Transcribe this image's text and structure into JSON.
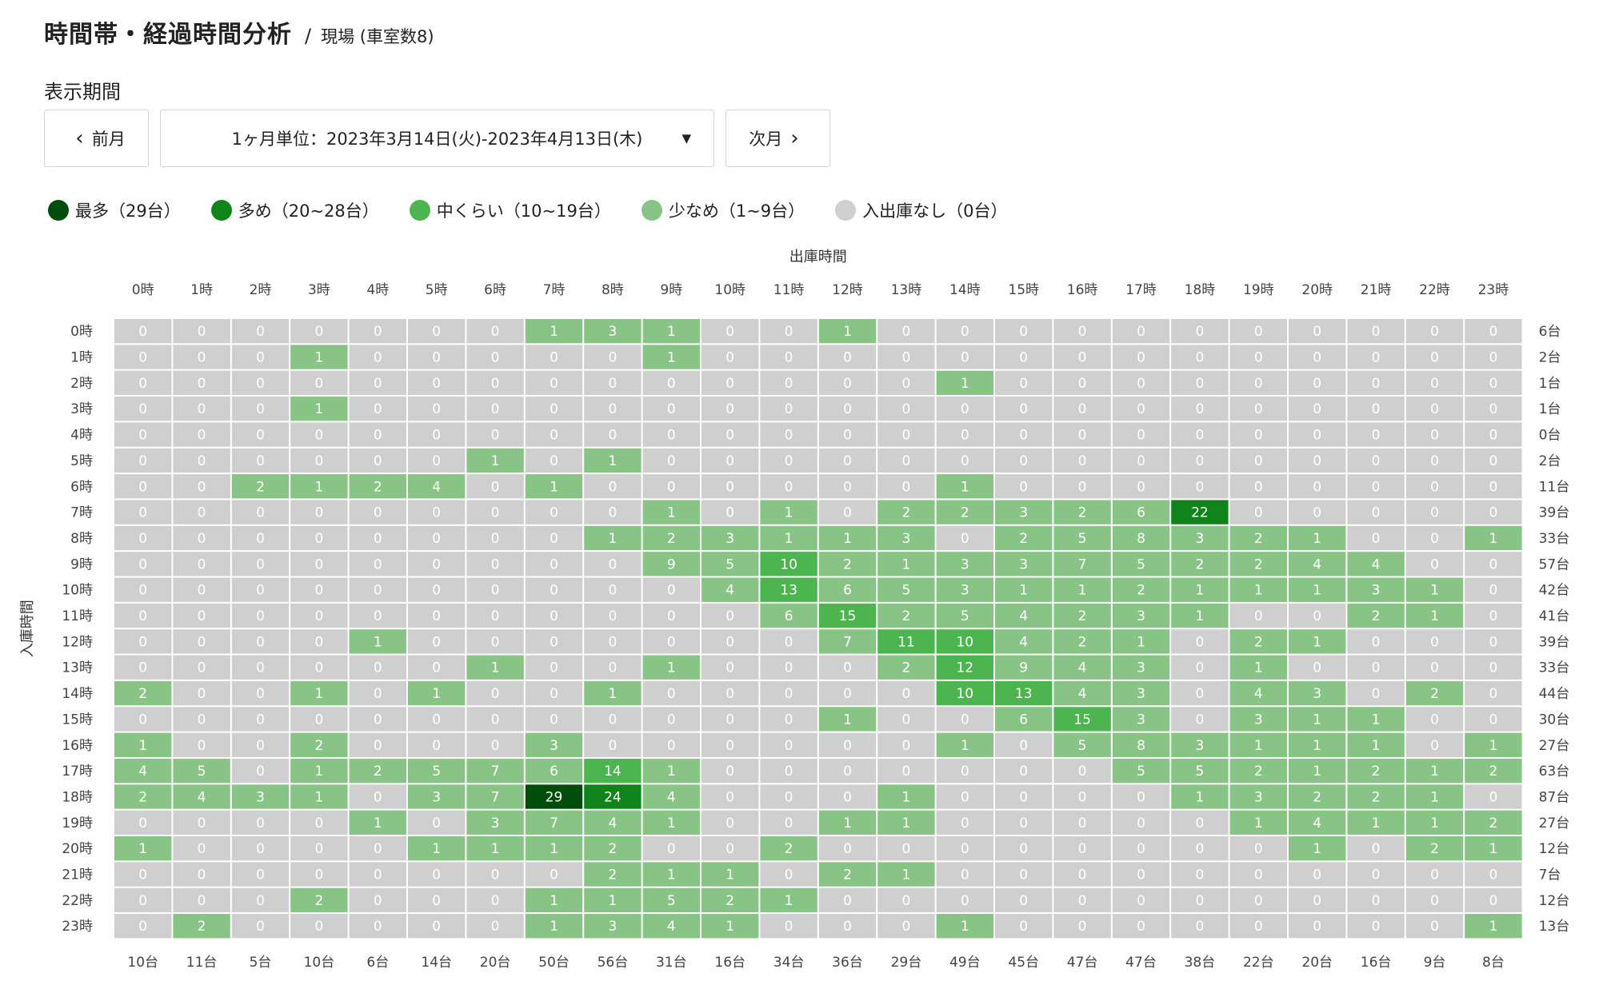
{
  "header": {
    "title": "時間帯・経過時間分析",
    "separator": "/",
    "subtitle": "現場 (車室数8)"
  },
  "period": {
    "label": "表示期間",
    "prev_label": "前月",
    "next_label": "次月",
    "selected": "1ヶ月単位：2023年3月14日(火)-2023年4月13日(木)"
  },
  "legend": [
    {
      "label": "最多（29台）",
      "color": "#004d0b"
    },
    {
      "label": "多め（20~28台）",
      "color": "#10841a"
    },
    {
      "label": "中くらい（10~19台）",
      "color": "#4cb54f"
    },
    {
      "label": "少なめ（1~9台）",
      "color": "#88c486"
    },
    {
      "label": "入出庫なし（0台）",
      "color": "#cfcfcf"
    }
  ],
  "chart_data": {
    "type": "heatmap",
    "xlabel": "出庫時間",
    "ylabel": "入庫時間",
    "x_categories": [
      "0時",
      "1時",
      "2時",
      "3時",
      "4時",
      "5時",
      "6時",
      "7時",
      "8時",
      "9時",
      "10時",
      "11時",
      "12時",
      "13時",
      "14時",
      "15時",
      "16時",
      "17時",
      "18時",
      "19時",
      "20時",
      "21時",
      "22時",
      "23時"
    ],
    "y_categories": [
      "0時",
      "1時",
      "2時",
      "3時",
      "4時",
      "5時",
      "6時",
      "7時",
      "8時",
      "9時",
      "10時",
      "11時",
      "12時",
      "13時",
      "14時",
      "15時",
      "16時",
      "17時",
      "18時",
      "19時",
      "20時",
      "21時",
      "22時",
      "23時"
    ],
    "values": [
      [
        0,
        0,
        0,
        0,
        0,
        0,
        0,
        1,
        3,
        1,
        0,
        0,
        1,
        0,
        0,
        0,
        0,
        0,
        0,
        0,
        0,
        0,
        0,
        0
      ],
      [
        0,
        0,
        0,
        1,
        0,
        0,
        0,
        0,
        0,
        1,
        0,
        0,
        0,
        0,
        0,
        0,
        0,
        0,
        0,
        0,
        0,
        0,
        0,
        0
      ],
      [
        0,
        0,
        0,
        0,
        0,
        0,
        0,
        0,
        0,
        0,
        0,
        0,
        0,
        0,
        1,
        0,
        0,
        0,
        0,
        0,
        0,
        0,
        0,
        0
      ],
      [
        0,
        0,
        0,
        1,
        0,
        0,
        0,
        0,
        0,
        0,
        0,
        0,
        0,
        0,
        0,
        0,
        0,
        0,
        0,
        0,
        0,
        0,
        0,
        0
      ],
      [
        0,
        0,
        0,
        0,
        0,
        0,
        0,
        0,
        0,
        0,
        0,
        0,
        0,
        0,
        0,
        0,
        0,
        0,
        0,
        0,
        0,
        0,
        0,
        0
      ],
      [
        0,
        0,
        0,
        0,
        0,
        0,
        1,
        0,
        1,
        0,
        0,
        0,
        0,
        0,
        0,
        0,
        0,
        0,
        0,
        0,
        0,
        0,
        0,
        0
      ],
      [
        0,
        0,
        2,
        1,
        2,
        4,
        0,
        1,
        0,
        0,
        0,
        0,
        0,
        0,
        1,
        0,
        0,
        0,
        0,
        0,
        0,
        0,
        0,
        0
      ],
      [
        0,
        0,
        0,
        0,
        0,
        0,
        0,
        0,
        0,
        1,
        0,
        1,
        0,
        2,
        2,
        3,
        2,
        6,
        22,
        0,
        0,
        0,
        0,
        0
      ],
      [
        0,
        0,
        0,
        0,
        0,
        0,
        0,
        0,
        1,
        2,
        3,
        1,
        1,
        3,
        0,
        2,
        5,
        8,
        3,
        2,
        1,
        0,
        0,
        1
      ],
      [
        0,
        0,
        0,
        0,
        0,
        0,
        0,
        0,
        0,
        9,
        5,
        10,
        2,
        1,
        3,
        3,
        7,
        5,
        2,
        2,
        4,
        4,
        0,
        0
      ],
      [
        0,
        0,
        0,
        0,
        0,
        0,
        0,
        0,
        0,
        0,
        4,
        13,
        6,
        5,
        3,
        1,
        1,
        2,
        1,
        1,
        1,
        3,
        1,
        0
      ],
      [
        0,
        0,
        0,
        0,
        0,
        0,
        0,
        0,
        0,
        0,
        0,
        6,
        15,
        2,
        5,
        4,
        2,
        3,
        1,
        0,
        0,
        2,
        1,
        0
      ],
      [
        0,
        0,
        0,
        0,
        1,
        0,
        0,
        0,
        0,
        0,
        0,
        0,
        7,
        11,
        10,
        4,
        2,
        1,
        0,
        2,
        1,
        0,
        0,
        0
      ],
      [
        0,
        0,
        0,
        0,
        0,
        0,
        1,
        0,
        0,
        1,
        0,
        0,
        0,
        2,
        12,
        9,
        4,
        3,
        0,
        1,
        0,
        0,
        0,
        0
      ],
      [
        2,
        0,
        0,
        1,
        0,
        1,
        0,
        0,
        1,
        0,
        0,
        0,
        0,
        0,
        10,
        13,
        4,
        3,
        0,
        4,
        3,
        0,
        2,
        0
      ],
      [
        0,
        0,
        0,
        0,
        0,
        0,
        0,
        0,
        0,
        0,
        0,
        0,
        1,
        0,
        0,
        6,
        15,
        3,
        0,
        3,
        1,
        1,
        0,
        0
      ],
      [
        1,
        0,
        0,
        2,
        0,
        0,
        0,
        3,
        0,
        0,
        0,
        0,
        0,
        0,
        1,
        0,
        5,
        8,
        3,
        1,
        1,
        1,
        0,
        1
      ],
      [
        4,
        5,
        0,
        1,
        2,
        5,
        7,
        6,
        14,
        1,
        0,
        0,
        0,
        0,
        0,
        0,
        0,
        5,
        5,
        2,
        1,
        2,
        1,
        2
      ],
      [
        2,
        4,
        3,
        1,
        0,
        3,
        7,
        29,
        24,
        4,
        0,
        0,
        0,
        1,
        0,
        0,
        0,
        0,
        1,
        3,
        2,
        2,
        1,
        0
      ],
      [
        0,
        0,
        0,
        0,
        1,
        0,
        3,
        7,
        4,
        1,
        0,
        0,
        1,
        1,
        0,
        0,
        0,
        0,
        0,
        1,
        4,
        1,
        1,
        2
      ],
      [
        1,
        0,
        0,
        0,
        0,
        1,
        1,
        1,
        2,
        0,
        0,
        2,
        0,
        0,
        0,
        0,
        0,
        0,
        0,
        0,
        1,
        0,
        2,
        1
      ],
      [
        0,
        0,
        0,
        0,
        0,
        0,
        0,
        0,
        2,
        1,
        1,
        0,
        2,
        1,
        0,
        0,
        0,
        0,
        0,
        0,
        0,
        0,
        0,
        0
      ],
      [
        0,
        0,
        0,
        2,
        0,
        0,
        0,
        1,
        1,
        5,
        2,
        1,
        0,
        0,
        0,
        0,
        0,
        0,
        0,
        0,
        0,
        0,
        0,
        0
      ],
      [
        0,
        2,
        0,
        0,
        0,
        0,
        0,
        1,
        3,
        4,
        1,
        0,
        0,
        0,
        1,
        0,
        0,
        0,
        0,
        0,
        0,
        0,
        0,
        1
      ]
    ],
    "row_totals": [
      "6台",
      "2台",
      "1台",
      "1台",
      "0台",
      "2台",
      "11台",
      "39台",
      "33台",
      "57台",
      "42台",
      "41台",
      "39台",
      "33台",
      "44台",
      "30台",
      "27台",
      "63台",
      "87台",
      "27台",
      "12台",
      "7台",
      "12台",
      "13台"
    ],
    "col_totals": [
      "10台",
      "11台",
      "5台",
      "10台",
      "6台",
      "14台",
      "20台",
      "50台",
      "56台",
      "31台",
      "16台",
      "34台",
      "36台",
      "29台",
      "49台",
      "45台",
      "47台",
      "47台",
      "38台",
      "22台",
      "20台",
      "16台",
      "9台",
      "8台"
    ],
    "thresholds": {
      "max": 29,
      "high_min": 20,
      "mid_min": 10,
      "low_min": 1
    },
    "colors": {
      "max": "#004d0b",
      "high": "#10841a",
      "mid": "#4cb54f",
      "low": "#88c486",
      "zero": "#cfcfcf"
    }
  }
}
